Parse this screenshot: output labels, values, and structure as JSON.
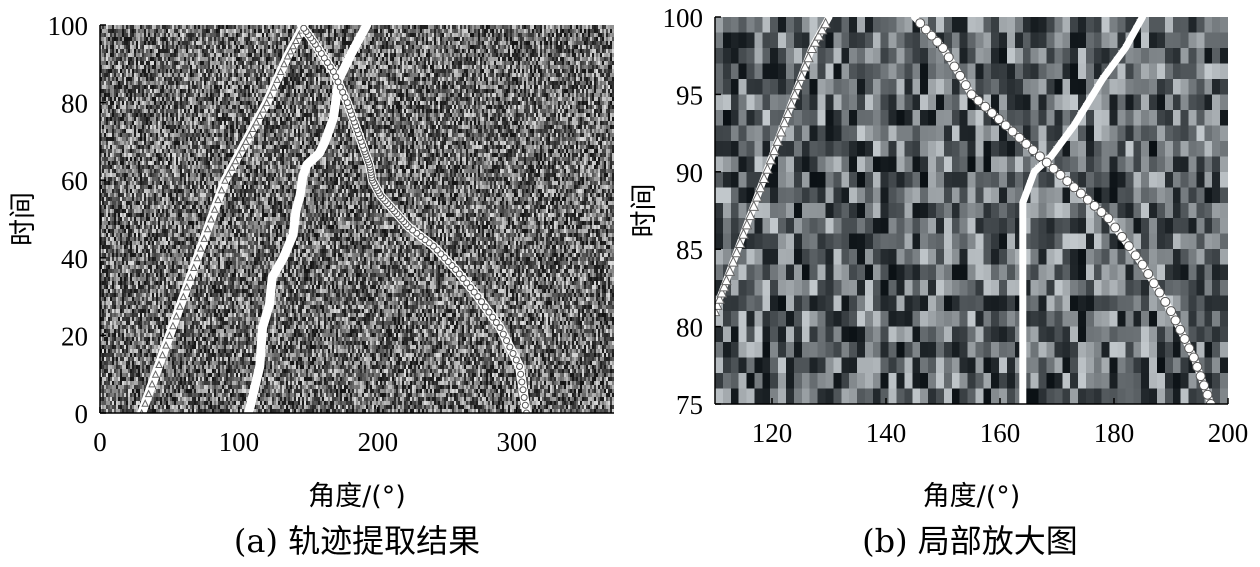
{
  "chart_data": [
    {
      "type": "line",
      "panel": "a",
      "caption": "(a) 轨迹提取结果",
      "xlabel": "角度/(°)",
      "ylabel": "时间",
      "xlim": [
        0,
        370
      ],
      "ylim": [
        0,
        100
      ],
      "xticks": [
        "0",
        "100",
        "200",
        "300"
      ],
      "yticks": [
        "0",
        "20",
        "40",
        "60",
        "80",
        "100"
      ],
      "background": "noise-intensity-map",
      "grid": false,
      "series": [
        {
          "x": [
            30,
            45,
            60,
            75,
            90,
            105,
            120,
            135,
            147
          ],
          "y": [
            0,
            15,
            30,
            45,
            60,
            70,
            80,
            92,
            100
          ],
          "marker": "triangle"
        },
        {
          "x": [
            107,
            115,
            117,
            122,
            124,
            132,
            139,
            141,
            144,
            146,
            149,
            158,
            162,
            168,
            172,
            180,
            192
          ],
          "y": [
            0,
            12,
            22,
            28,
            35,
            40,
            46,
            52,
            56,
            61,
            64,
            67,
            70,
            76,
            86,
            92,
            100
          ],
          "marker": "none"
        },
        {
          "x": [
            307,
            302,
            288,
            272,
            256,
            240,
            222,
            212,
            202,
            196,
            194,
            190,
            184,
            178,
            168,
            155,
            145
          ],
          "y": [
            0,
            12,
            22,
            30,
            37,
            43,
            48,
            52,
            56,
            60,
            64,
            68,
            74,
            80,
            88,
            95,
            100
          ],
          "marker": "circle"
        }
      ]
    },
    {
      "type": "line",
      "panel": "b",
      "caption": "(b) 局部放大图",
      "xlabel": "角度/(°)",
      "ylabel": "时间",
      "xlim": [
        110,
        200
      ],
      "ylim": [
        75,
        100
      ],
      "xticks": [
        "120",
        "140",
        "160",
        "180",
        "200"
      ],
      "yticks": [
        "75",
        "80",
        "85",
        "90",
        "95",
        "100"
      ],
      "background": "noise-intensity-map",
      "grid": false,
      "series": [
        {
          "x": [
            110,
            112,
            115,
            118,
            121,
            124,
            127,
            130
          ],
          "y": [
            81,
            83,
            86,
            89,
            92,
            95,
            98,
            100
          ],
          "marker": "triangle"
        },
        {
          "x": [
            164,
            164,
            164,
            164,
            166,
            169,
            173,
            178,
            182,
            185
          ],
          "y": [
            75,
            80,
            85,
            88,
            90,
            91,
            93,
            96,
            98,
            100
          ],
          "marker": "star"
        },
        {
          "x": [
            197,
            194,
            190,
            185,
            179,
            173,
            167,
            161,
            155,
            150,
            145
          ],
          "y": [
            75,
            78,
            81,
            84,
            87,
            89,
            91,
            93,
            95,
            98,
            100
          ],
          "marker": "circle"
        }
      ]
    }
  ]
}
